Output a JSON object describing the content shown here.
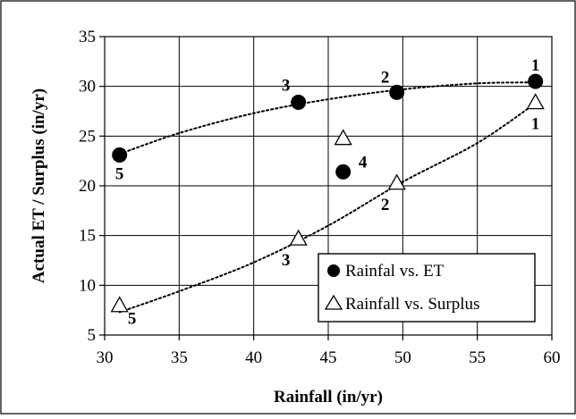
{
  "chart_data": {
    "type": "scatter",
    "title": "",
    "xlabel": "Rainfall (in/yr)",
    "ylabel": "Actual ET / Surplus (in/yr)",
    "xlim": [
      30,
      60
    ],
    "ylim": [
      5,
      35
    ],
    "x_ticks": [
      30,
      35,
      40,
      45,
      50,
      55,
      60
    ],
    "y_ticks": [
      5,
      10,
      15,
      20,
      25,
      30,
      35
    ],
    "grid": true,
    "legend_position": "bottom-right",
    "series": [
      {
        "name": "Rainfal vs. ET",
        "marker": "filled-circle",
        "color": "#000000",
        "points": [
          {
            "x": 58.9,
            "y": 30.5,
            "label": "1"
          },
          {
            "x": 49.6,
            "y": 29.4,
            "label": "2"
          },
          {
            "x": 43.0,
            "y": 28.4,
            "label": "3"
          },
          {
            "x": 46.0,
            "y": 21.4,
            "label": "4"
          },
          {
            "x": 31.0,
            "y": 23.1,
            "label": "5"
          }
        ],
        "trendline": {
          "style": "dotted",
          "points": [
            [
              31,
              23.2
            ],
            [
              35,
              25.3
            ],
            [
              40,
              27.3
            ],
            [
              45,
              28.7
            ],
            [
              50,
              29.7
            ],
            [
              55,
              30.3
            ],
            [
              58.9,
              30.4
            ]
          ]
        }
      },
      {
        "name": "Rainfall vs. Surplus",
        "marker": "open-triangle",
        "color": "#000000",
        "points": [
          {
            "x": 58.9,
            "y": 28.3,
            "label": "1"
          },
          {
            "x": 49.6,
            "y": 20.2,
            "label": "2"
          },
          {
            "x": 43.0,
            "y": 14.6,
            "label": "3"
          },
          {
            "x": 46.0,
            "y": 24.7,
            "label": ""
          },
          {
            "x": 31.0,
            "y": 7.9,
            "label": "5"
          }
        ],
        "trendline": {
          "style": "dotted",
          "points": [
            [
              31,
              7.3
            ],
            [
              35,
              9.4
            ],
            [
              40,
              12.3
            ],
            [
              45,
              16.0
            ],
            [
              50,
              20.4
            ],
            [
              55,
              24.3
            ],
            [
              58.9,
              28.3
            ]
          ]
        }
      }
    ]
  }
}
